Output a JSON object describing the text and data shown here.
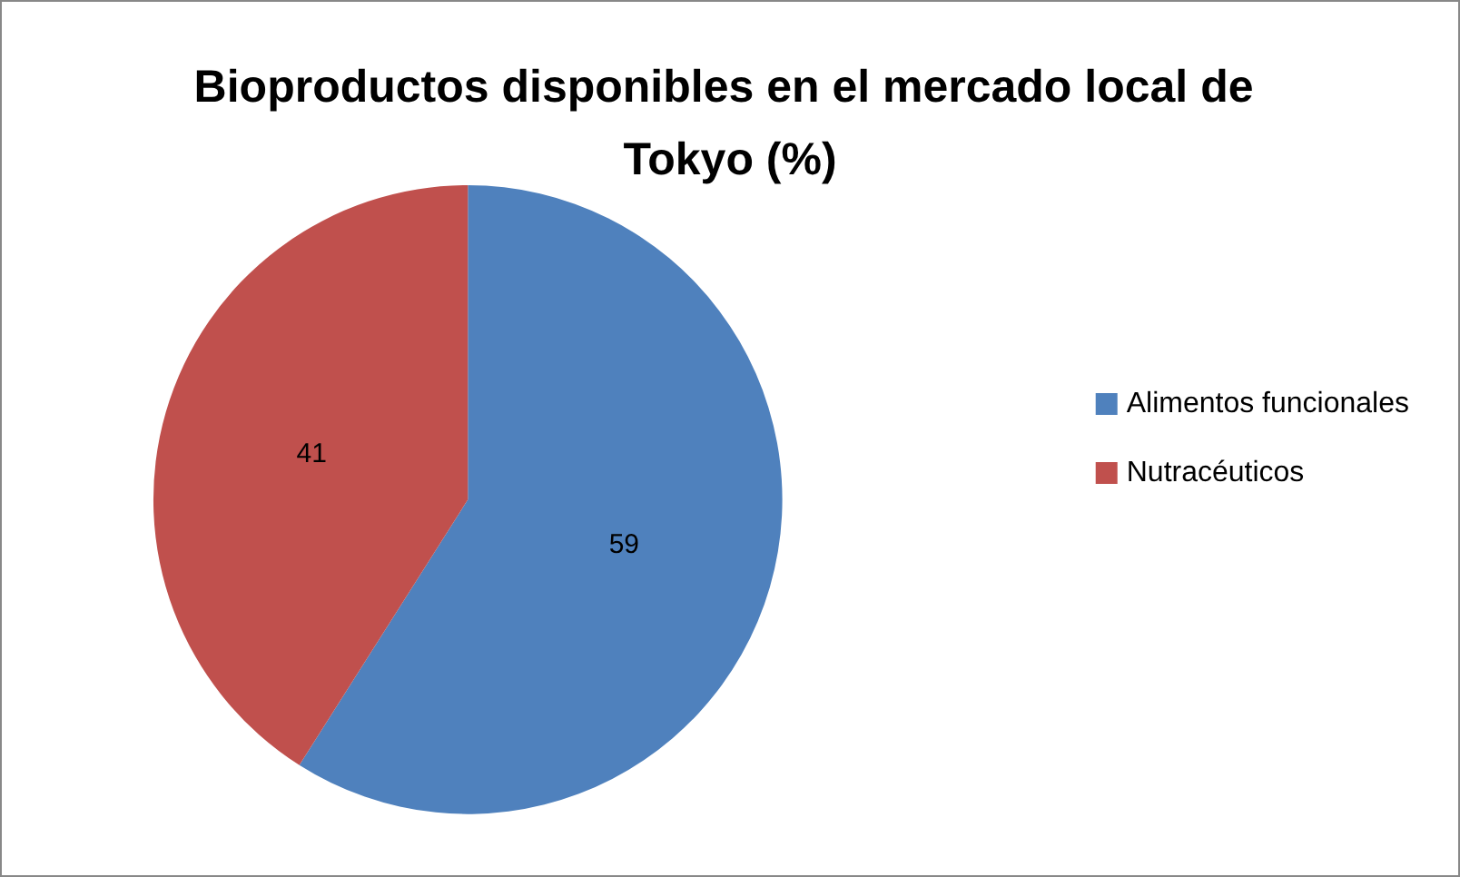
{
  "chart_data": {
    "type": "pie",
    "title": "Bioproductos disponibles en el mercado local de Tokyo (%)",
    "categories": [
      "Alimentos funcionales",
      "Nutracéuticos"
    ],
    "values": [
      59,
      41
    ],
    "colors": [
      "#4f81bd",
      "#c0504d"
    ],
    "data_labels": true,
    "legend": "right"
  }
}
